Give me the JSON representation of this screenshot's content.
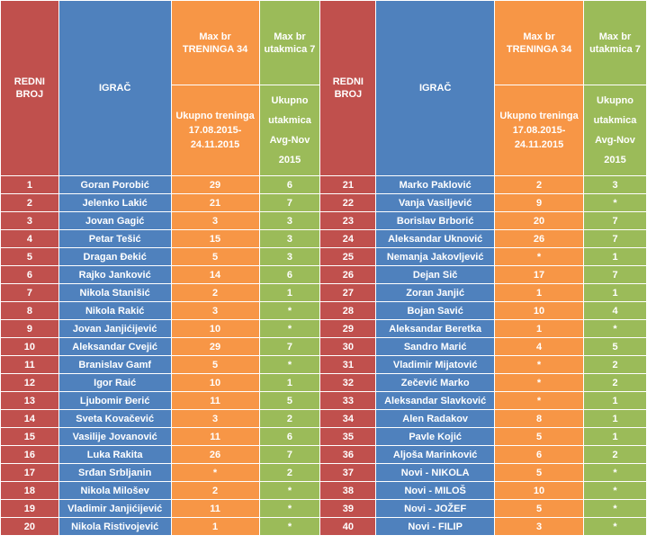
{
  "headers": {
    "redni_broj": "REDNI BROJ",
    "igrac": "IGRAČ",
    "max_treninga": "Max br TRENINGA 34",
    "max_utakmica": "Max br utakmica 7",
    "ukupno_treninga": "Ukupno treninga 17.08.2015- 24.11.2015",
    "ukupno_utakmica": "Ukupno utakmica Avg-Nov 2015"
  },
  "colors": {
    "red": "#c0504d",
    "blue": "#4f81bd",
    "orange": "#f79646",
    "green": "#9bbb59"
  },
  "left": [
    {
      "no": "1",
      "name": "Goran Porobić",
      "t": "29",
      "u": "6"
    },
    {
      "no": "2",
      "name": "Jelenko Lakić",
      "t": "21",
      "u": "7"
    },
    {
      "no": "3",
      "name": "Jovan Gagić",
      "t": "3",
      "u": "3"
    },
    {
      "no": "4",
      "name": "Petar Tešić",
      "t": "15",
      "u": "3"
    },
    {
      "no": "5",
      "name": "Dragan Đekić",
      "t": "5",
      "u": "3"
    },
    {
      "no": "6",
      "name": "Rajko Janković",
      "t": "14",
      "u": "6"
    },
    {
      "no": "7",
      "name": "Nikola Stanišić",
      "t": "2",
      "u": "1"
    },
    {
      "no": "8",
      "name": "Nikola Rakić",
      "t": "3",
      "u": "*"
    },
    {
      "no": "9",
      "name": "Jovan Janjićijević",
      "t": "10",
      "u": "*"
    },
    {
      "no": "10",
      "name": "Aleksandar Cvejić",
      "t": "29",
      "u": "7"
    },
    {
      "no": "11",
      "name": "Branislav Gamf",
      "t": "5",
      "u": "*"
    },
    {
      "no": "12",
      "name": "Igor Raić",
      "t": "10",
      "u": "1"
    },
    {
      "no": "13",
      "name": "Ljubomir Đerić",
      "t": "11",
      "u": "5"
    },
    {
      "no": "14",
      "name": "Sveta Kovačević",
      "t": "3",
      "u": "2"
    },
    {
      "no": "15",
      "name": "Vasilije Jovanović",
      "t": "11",
      "u": "6"
    },
    {
      "no": "16",
      "name": "Luka Rakita",
      "t": "26",
      "u": "7"
    },
    {
      "no": "17",
      "name": "Srđan Srbljanin",
      "t": "*",
      "u": "2"
    },
    {
      "no": "18",
      "name": "Nikola Milošev",
      "t": "2",
      "u": "*"
    },
    {
      "no": "19",
      "name": "Vladimir Janjićijević",
      "t": "11",
      "u": "*"
    },
    {
      "no": "20",
      "name": "Nikola Ristivojević",
      "t": "1",
      "u": "*"
    }
  ],
  "right": [
    {
      "no": "21",
      "name": "Marko Paklović",
      "t": "2",
      "u": "3"
    },
    {
      "no": "22",
      "name": "Vanja Vasiljević",
      "t": "9",
      "u": "*"
    },
    {
      "no": "23",
      "name": "Borislav Brborić",
      "t": "20",
      "u": "7"
    },
    {
      "no": "24",
      "name": "Aleksandar Uknović",
      "t": "26",
      "u": "7"
    },
    {
      "no": "25",
      "name": "Nemanja Jakovljević",
      "t": "*",
      "u": "1"
    },
    {
      "no": "26",
      "name": "Dejan Sič",
      "t": "17",
      "u": "7"
    },
    {
      "no": "27",
      "name": "Zoran Janjić",
      "t": "1",
      "u": "1"
    },
    {
      "no": "28",
      "name": "Bojan Savić",
      "t": "10",
      "u": "4"
    },
    {
      "no": "29",
      "name": "Aleksandar Beretka",
      "t": "1",
      "u": "*"
    },
    {
      "no": "30",
      "name": "Sandro Marić",
      "t": "4",
      "u": "5"
    },
    {
      "no": "31",
      "name": "Vladimir Mijatović",
      "t": "*",
      "u": "2"
    },
    {
      "no": "32",
      "name": "Zečević Marko",
      "t": "*",
      "u": "2"
    },
    {
      "no": "33",
      "name": "Aleksandar Slavković",
      "t": "*",
      "u": "1"
    },
    {
      "no": "34",
      "name": "Alen Radakov",
      "t": "8",
      "u": "1"
    },
    {
      "no": "35",
      "name": "Pavle Kojić",
      "t": "5",
      "u": "1"
    },
    {
      "no": "36",
      "name": "Aljoša Marinković",
      "t": "6",
      "u": "2"
    },
    {
      "no": "37",
      "name": "Novi - NIKOLA",
      "t": "5",
      "u": "*"
    },
    {
      "no": "38",
      "name": "Novi - MILOŠ",
      "t": "10",
      "u": "*"
    },
    {
      "no": "39",
      "name": "Novi - JOŽEF",
      "t": "5",
      "u": "*"
    },
    {
      "no": "40",
      "name": "Novi - FILIP",
      "t": "3",
      "u": "*"
    }
  ]
}
